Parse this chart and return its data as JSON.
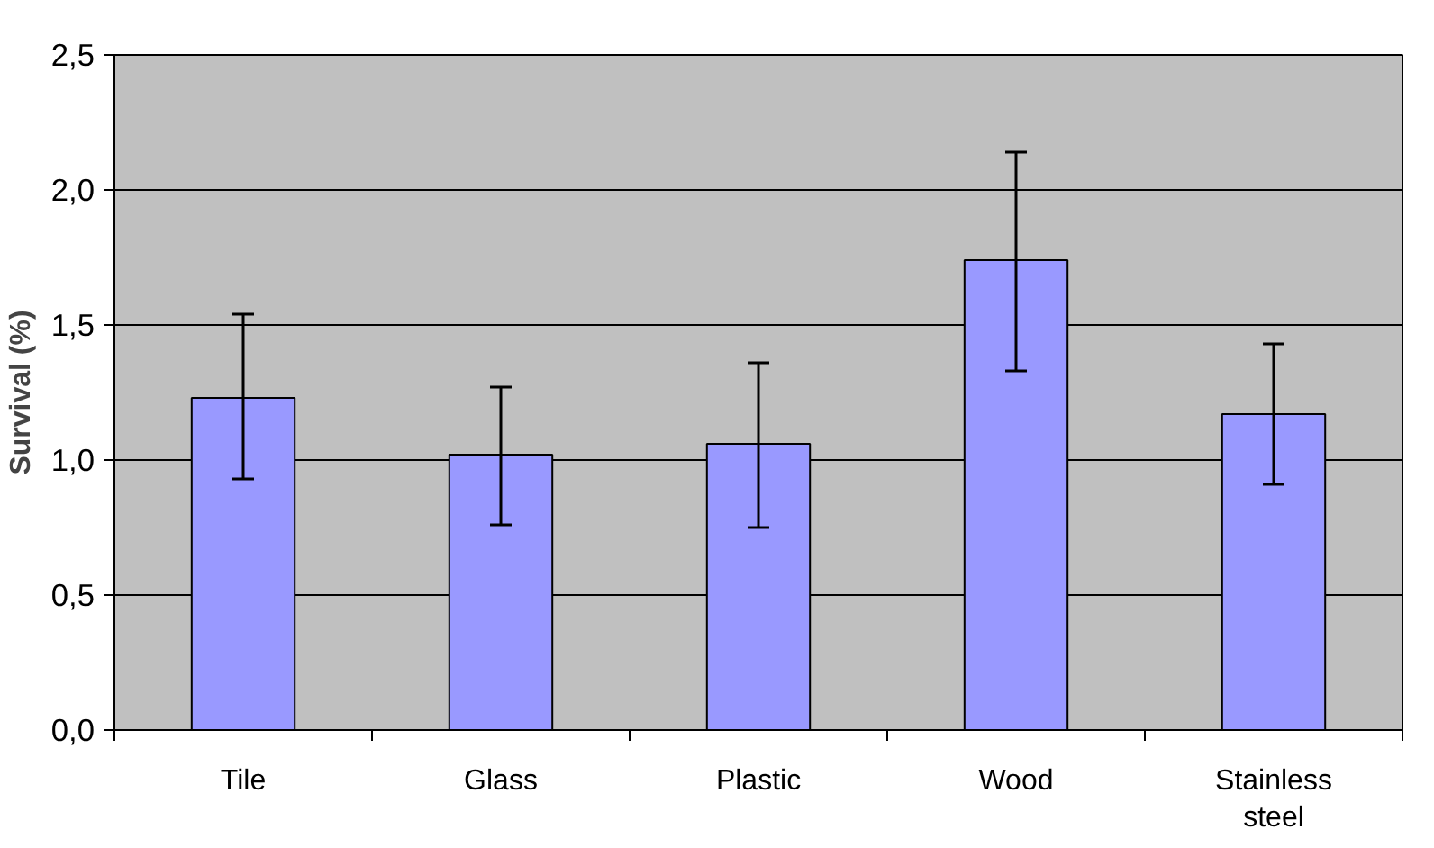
{
  "chart_data": {
    "type": "bar",
    "ylabel": "Survival (%)",
    "categories": [
      "Tile",
      "Glass",
      "Plastic",
      "Wood",
      "Stainless steel"
    ],
    "values": [
      1.23,
      1.02,
      1.06,
      1.74,
      1.17
    ],
    "color": "#9999ff",
    "errors": [
      [
        0.93,
        1.54
      ],
      [
        0.76,
        1.27
      ],
      [
        0.75,
        1.36
      ],
      [
        1.33,
        2.14
      ],
      [
        0.91,
        1.43
      ]
    ],
    "ylim": [
      0,
      2.5
    ],
    "yticks": [
      {
        "value": 0,
        "label": "0,0"
      },
      {
        "value": 0.5,
        "label": "0,5"
      },
      {
        "value": 1,
        "label": "1,0"
      },
      {
        "value": 1.5,
        "label": "1,5"
      },
      {
        "value": 2,
        "label": "2,0"
      },
      {
        "value": 2.5,
        "label": "2,5"
      }
    ],
    "grid": "y"
  }
}
